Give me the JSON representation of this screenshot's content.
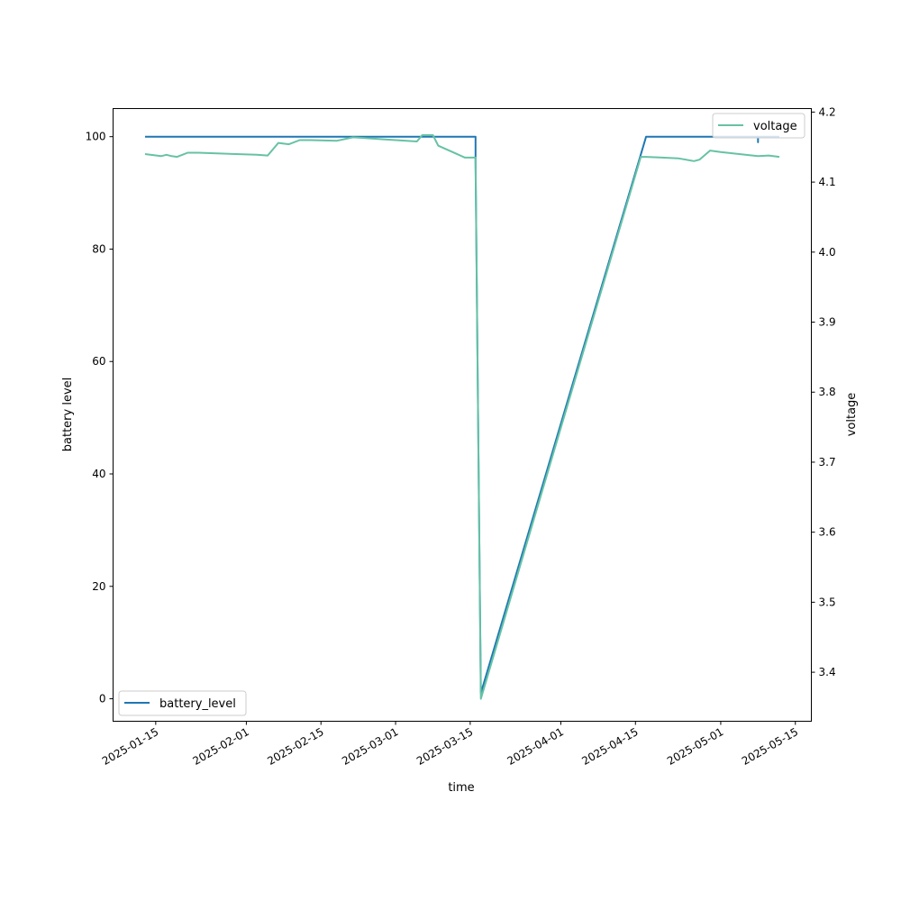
{
  "chart_data": {
    "type": "line",
    "xlabel": "time",
    "xlim": [
      "2025-01-07",
      "2025-05-18"
    ],
    "x_ticks": [
      "2025-01-15",
      "2025-02-01",
      "2025-02-15",
      "2025-03-01",
      "2025-03-15",
      "2025-04-01",
      "2025-04-15",
      "2025-05-01",
      "2025-05-15"
    ],
    "left_axis": {
      "label": "battery level",
      "ylim": [
        -4,
        105
      ],
      "ticks": [
        0,
        20,
        40,
        60,
        80,
        100
      ]
    },
    "right_axis": {
      "label": "voltage",
      "ylim": [
        3.33,
        4.205
      ],
      "ticks": [
        3.4,
        3.5,
        3.6,
        3.7,
        3.8,
        3.9,
        4.0,
        4.1,
        4.2
      ]
    },
    "series": [
      {
        "name": "battery_level",
        "axis": "left",
        "color": "#1f77b4",
        "legend": "bottom-left",
        "points": [
          [
            "2025-01-13",
            100
          ],
          [
            "2025-03-16",
            100
          ],
          [
            "2025-03-16",
            95.3
          ],
          [
            "2025-03-17",
            1
          ],
          [
            "2025-04-17",
            100
          ],
          [
            "2025-05-08",
            100
          ],
          [
            "2025-05-08",
            99
          ],
          [
            "2025-05-08",
            100
          ],
          [
            "2025-05-12",
            100
          ]
        ]
      },
      {
        "name": "voltage",
        "axis": "right",
        "color": "#66c2a5",
        "legend": "top-right",
        "points": [
          [
            "2025-01-13",
            4.14
          ],
          [
            "2025-01-14",
            4.139
          ],
          [
            "2025-01-16",
            4.137
          ],
          [
            "2025-01-17",
            4.139
          ],
          [
            "2025-01-18",
            4.137
          ],
          [
            "2025-01-19",
            4.136
          ],
          [
            "2025-01-20",
            4.139
          ],
          [
            "2025-01-21",
            4.142
          ],
          [
            "2025-01-23",
            4.142
          ],
          [
            "2025-02-03",
            4.139
          ],
          [
            "2025-02-05",
            4.138
          ],
          [
            "2025-02-07",
            4.156
          ],
          [
            "2025-02-09",
            4.154
          ],
          [
            "2025-02-11",
            4.16
          ],
          [
            "2025-02-13",
            4.16
          ],
          [
            "2025-02-18",
            4.159
          ],
          [
            "2025-02-21",
            4.164
          ],
          [
            "2025-02-23",
            4.163
          ],
          [
            "2025-02-27",
            4.161
          ],
          [
            "2025-03-03",
            4.159
          ],
          [
            "2025-03-05",
            4.158
          ],
          [
            "2025-03-06",
            4.167
          ],
          [
            "2025-03-08",
            4.167
          ],
          [
            "2025-03-09",
            4.152
          ],
          [
            "2025-03-14",
            4.135
          ],
          [
            "2025-03-16",
            4.135
          ],
          [
            "2025-03-17",
            3.362
          ],
          [
            "2025-04-16",
            4.136
          ],
          [
            "2025-04-17",
            4.136
          ],
          [
            "2025-04-20",
            4.135
          ],
          [
            "2025-04-23",
            4.134
          ],
          [
            "2025-04-26",
            4.13
          ],
          [
            "2025-04-27",
            4.132
          ],
          [
            "2025-04-29",
            4.145
          ],
          [
            "2025-05-01",
            4.143
          ],
          [
            "2025-05-07",
            4.138
          ],
          [
            "2025-05-08",
            4.137
          ],
          [
            "2025-05-10",
            4.138
          ],
          [
            "2025-05-12",
            4.136
          ]
        ]
      }
    ]
  }
}
